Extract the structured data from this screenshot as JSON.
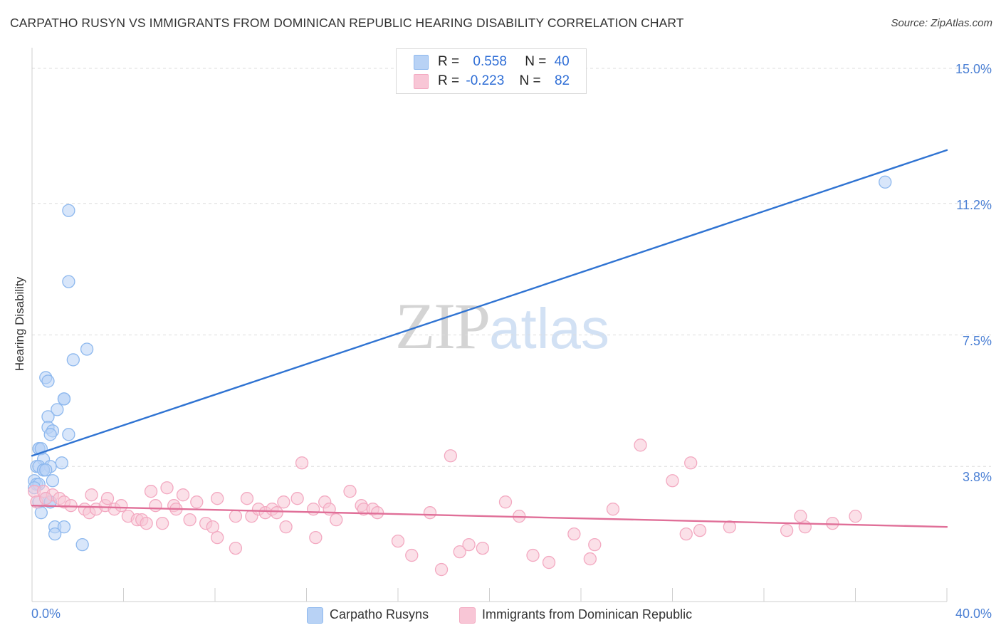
{
  "chart_data": {
    "type": "scatter",
    "title": "CARPATHO RUSYN VS IMMIGRANTS FROM DOMINICAN REPUBLIC HEARING DISABILITY CORRELATION CHART",
    "source": "Source: ZipAtlas.com",
    "xlabel": "",
    "ylabel": "Hearing Disability",
    "x_axis": {
      "min_label": "0.0%",
      "max_label": "40.0%",
      "range": [
        0,
        40
      ]
    },
    "y_axis": {
      "range": [
        0,
        15
      ],
      "ticks": [
        {
          "value": 3.8,
          "label": "3.8%"
        },
        {
          "value": 7.5,
          "label": "7.5%"
        },
        {
          "value": 11.2,
          "label": "11.2%"
        },
        {
          "value": 15.0,
          "label": "15.0%"
        }
      ]
    },
    "grid": "horizontal-dashed",
    "watermark": {
      "left": "ZIP",
      "right": "atlas"
    },
    "legend_stats": [
      {
        "r_label": "R =",
        "r_value": "0.558",
        "n_label": "N =",
        "n_value": "40"
      },
      {
        "r_label": "R =",
        "r_value": "-0.223",
        "n_label": "N =",
        "n_value": "82"
      }
    ],
    "series": [
      {
        "name": "Carpatho Rusyns",
        "color": "#8db8ee",
        "fill": "#b8d2f5",
        "line_color": "#2f73d2",
        "trend": {
          "x": [
            0,
            40
          ],
          "y": [
            4.1,
            12.7
          ]
        },
        "points": [
          [
            1.6,
            11.0
          ],
          [
            1.6,
            9.0
          ],
          [
            2.4,
            7.1
          ],
          [
            1.8,
            6.8
          ],
          [
            0.6,
            6.3
          ],
          [
            0.7,
            6.2
          ],
          [
            1.4,
            5.7
          ],
          [
            1.4,
            5.7
          ],
          [
            1.1,
            5.4
          ],
          [
            0.7,
            5.2
          ],
          [
            0.7,
            4.9
          ],
          [
            0.9,
            4.8
          ],
          [
            0.8,
            4.7
          ],
          [
            1.6,
            4.7
          ],
          [
            0.3,
            4.3
          ],
          [
            0.3,
            4.3
          ],
          [
            0.4,
            4.3
          ],
          [
            0.5,
            4.0
          ],
          [
            1.3,
            3.9
          ],
          [
            0.2,
            3.8
          ],
          [
            0.3,
            3.8
          ],
          [
            0.8,
            3.8
          ],
          [
            0.5,
            3.7
          ],
          [
            0.5,
            3.7
          ],
          [
            0.6,
            3.7
          ],
          [
            0.1,
            3.4
          ],
          [
            0.2,
            3.3
          ],
          [
            0.3,
            3.3
          ],
          [
            0.9,
            3.4
          ],
          [
            0.1,
            3.2
          ],
          [
            0.3,
            2.8
          ],
          [
            0.6,
            2.9
          ],
          [
            0.8,
            2.8
          ],
          [
            0.8,
            2.8
          ],
          [
            0.4,
            2.5
          ],
          [
            1.0,
            2.1
          ],
          [
            1.4,
            2.1
          ],
          [
            1.0,
            1.9
          ],
          [
            2.2,
            1.6
          ],
          [
            37.3,
            11.8
          ]
        ]
      },
      {
        "name": "Immigrants from Dominican Republic",
        "color": "#f3a9c1",
        "fill": "#f8c6d6",
        "line_color": "#e06f98",
        "trend": {
          "x": [
            0,
            40
          ],
          "y": [
            2.7,
            2.1
          ]
        },
        "points": [
          [
            0.1,
            3.1
          ],
          [
            0.5,
            3.1
          ],
          [
            0.9,
            3.0
          ],
          [
            0.2,
            2.8
          ],
          [
            0.6,
            2.9
          ],
          [
            1.2,
            2.9
          ],
          [
            1.4,
            2.8
          ],
          [
            1.7,
            2.7
          ],
          [
            2.3,
            2.6
          ],
          [
            2.5,
            2.5
          ],
          [
            2.6,
            3.0
          ],
          [
            2.8,
            2.6
          ],
          [
            3.2,
            2.7
          ],
          [
            3.3,
            2.9
          ],
          [
            3.6,
            2.6
          ],
          [
            3.9,
            2.7
          ],
          [
            4.2,
            2.4
          ],
          [
            4.6,
            2.3
          ],
          [
            4.8,
            2.3
          ],
          [
            5.0,
            2.2
          ],
          [
            5.2,
            3.1
          ],
          [
            5.4,
            2.7
          ],
          [
            5.7,
            2.2
          ],
          [
            5.9,
            3.2
          ],
          [
            6.2,
            2.7
          ],
          [
            6.3,
            2.6
          ],
          [
            6.6,
            3.0
          ],
          [
            6.9,
            2.3
          ],
          [
            7.2,
            2.8
          ],
          [
            7.6,
            2.2
          ],
          [
            7.9,
            2.1
          ],
          [
            8.1,
            2.9
          ],
          [
            8.1,
            1.8
          ],
          [
            8.9,
            2.4
          ],
          [
            8.9,
            1.5
          ],
          [
            9.4,
            2.9
          ],
          [
            9.6,
            2.4
          ],
          [
            9.9,
            2.6
          ],
          [
            10.2,
            2.5
          ],
          [
            10.5,
            2.6
          ],
          [
            10.7,
            2.5
          ],
          [
            11.0,
            2.8
          ],
          [
            11.1,
            2.1
          ],
          [
            11.6,
            2.9
          ],
          [
            12.3,
            2.6
          ],
          [
            12.4,
            1.8
          ],
          [
            12.8,
            2.8
          ],
          [
            13.0,
            2.6
          ],
          [
            13.3,
            2.3
          ],
          [
            13.9,
            3.1
          ],
          [
            14.4,
            2.7
          ],
          [
            14.5,
            2.6
          ],
          [
            14.9,
            2.6
          ],
          [
            15.1,
            2.5
          ],
          [
            16.0,
            1.7
          ],
          [
            16.6,
            1.3
          ],
          [
            17.4,
            2.5
          ],
          [
            17.9,
            0.9
          ],
          [
            18.3,
            4.1
          ],
          [
            18.7,
            1.4
          ],
          [
            19.1,
            1.6
          ],
          [
            19.7,
            1.5
          ],
          [
            20.7,
            2.8
          ],
          [
            21.3,
            2.4
          ],
          [
            21.9,
            1.3
          ],
          [
            22.6,
            1.1
          ],
          [
            23.7,
            1.9
          ],
          [
            24.4,
            1.2
          ],
          [
            24.6,
            1.6
          ],
          [
            25.4,
            2.6
          ],
          [
            26.6,
            4.4
          ],
          [
            28.0,
            3.4
          ],
          [
            28.6,
            1.9
          ],
          [
            28.8,
            3.9
          ],
          [
            29.2,
            2.0
          ],
          [
            30.5,
            2.1
          ],
          [
            33.0,
            2.0
          ],
          [
            33.6,
            2.4
          ],
          [
            33.8,
            2.1
          ],
          [
            35.0,
            2.2
          ],
          [
            36.0,
            2.4
          ],
          [
            11.8,
            3.9
          ]
        ]
      }
    ]
  }
}
